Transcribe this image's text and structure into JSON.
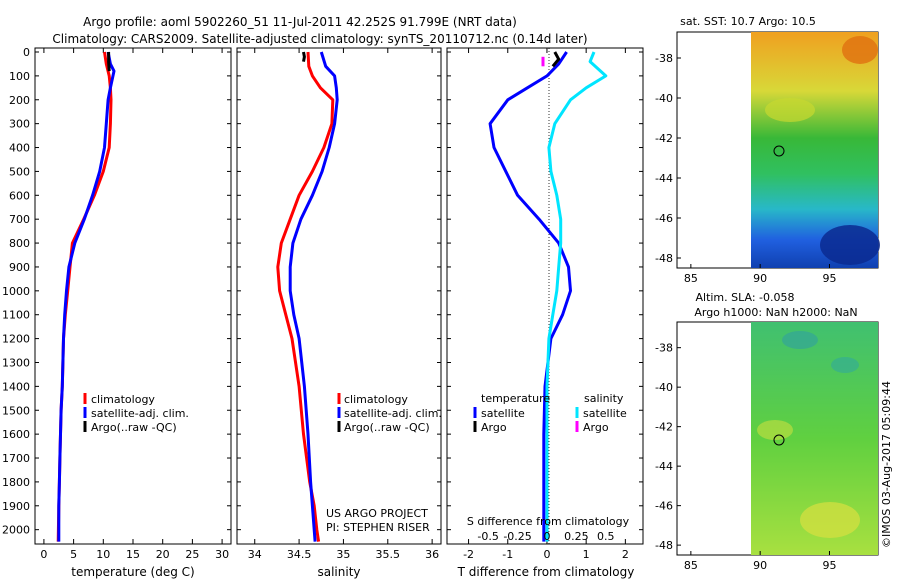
{
  "header": {
    "title_line1": "Argo profile: aoml 5902260_51 11-Jul-2011 42.252S 91.799E (NRT data)",
    "title_line2": "Climatology: CARS2009. Satellite-adjusted climatology: synTS_20110712.nc (0.14d later)"
  },
  "colors": {
    "climatology": "#ff0000",
    "satellite": "#0000ff",
    "argo": "#000000",
    "sat_salinity": "#00e5ff",
    "argo_salinity": "#ff00ff"
  },
  "depth_ticks": [
    0,
    100,
    200,
    300,
    400,
    500,
    600,
    700,
    800,
    900,
    1000,
    1100,
    1200,
    1300,
    1400,
    1500,
    1600,
    1700,
    1800,
    1900,
    2000
  ],
  "chart_data": [
    {
      "type": "line",
      "id": "temperature",
      "xlabel": "temperature (deg C)",
      "ylabel": "depth",
      "xlim": [
        -1.5,
        31.5
      ],
      "ylim": [
        0,
        2060
      ],
      "xticks": [
        0,
        5,
        10,
        15,
        20,
        25,
        30
      ],
      "series": [
        {
          "name": "climatology",
          "color": "#ff0000",
          "x": [
            10.2,
            10.5,
            11.0,
            11.2,
            11.3,
            11.2,
            11.0,
            10.0,
            8.5,
            6.7,
            4.8,
            4.4,
            4.0,
            3.6,
            3.3,
            3.1,
            2.9,
            2.8,
            2.7,
            2.6,
            2.5,
            2.4
          ],
          "y": [
            0,
            50,
            100,
            150,
            200,
            300,
            400,
            500,
            600,
            700,
            800,
            900,
            1000,
            1100,
            1200,
            1400,
            1500,
            1600,
            1700,
            1800,
            1900,
            2050
          ]
        },
        {
          "name": "satellite-adj. clim.",
          "color": "#0000ff",
          "x": [
            10.8,
            11.2,
            11.8,
            11.2,
            10.8,
            10.5,
            10.2,
            9.4,
            8.2,
            6.8,
            5.2,
            4.2,
            3.8,
            3.5,
            3.3,
            3.1,
            2.9,
            2.8,
            2.7,
            2.6,
            2.5,
            2.5
          ],
          "y": [
            0,
            50,
            80,
            150,
            200,
            300,
            400,
            500,
            600,
            700,
            800,
            900,
            1000,
            1100,
            1200,
            1400,
            1500,
            1600,
            1700,
            1800,
            1900,
            2050
          ]
        },
        {
          "name": "Argo(..raw -QC)",
          "color": "#000000",
          "x": [
            10.9,
            10.9,
            11.0
          ],
          "y": [
            0,
            40,
            80
          ]
        }
      ],
      "legend": {
        "position": "lower-center",
        "entries": [
          "climatology",
          "satellite-adj. clim.",
          "Argo(..raw -QC)"
        ]
      }
    },
    {
      "type": "line",
      "id": "salinity",
      "xlabel": "salinity",
      "xlim": [
        33.8,
        36.1
      ],
      "ylim": [
        0,
        2060
      ],
      "xticks": [
        34,
        34.5,
        35,
        35.5,
        36
      ],
      "tick_labels": [
        "34",
        "34.5",
        "35",
        "35.5",
        "36"
      ],
      "series": [
        {
          "name": "climatology",
          "color": "#ff0000",
          "x": [
            34.6,
            34.61,
            34.65,
            34.74,
            34.88,
            34.87,
            34.78,
            34.65,
            34.5,
            34.4,
            34.3,
            34.26,
            34.28,
            34.35,
            34.42,
            34.5,
            34.55,
            34.62,
            34.67,
            34.7,
            34.72
          ],
          "y": [
            0,
            60,
            100,
            150,
            200,
            300,
            400,
            500,
            600,
            700,
            800,
            900,
            1000,
            1100,
            1200,
            1400,
            1600,
            1800,
            1900,
            2000,
            2050
          ]
        },
        {
          "name": "satellite-adj. clim.",
          "color": "#0000ff",
          "x": [
            34.75,
            34.8,
            34.9,
            34.92,
            34.93,
            34.9,
            34.84,
            34.76,
            34.65,
            34.52,
            34.43,
            34.4,
            34.4,
            34.44,
            34.5,
            34.56,
            34.6,
            34.63,
            34.65,
            34.67,
            34.68
          ],
          "y": [
            0,
            60,
            100,
            150,
            200,
            300,
            400,
            500,
            600,
            700,
            800,
            900,
            1000,
            1100,
            1200,
            1400,
            1600,
            1800,
            1900,
            2000,
            2050
          ]
        },
        {
          "name": "Argo(..raw -QC)",
          "color": "#000000",
          "x": [
            34.55,
            34.56,
            34.55
          ],
          "y": [
            0,
            20,
            40
          ]
        }
      ],
      "legend": {
        "position": "lower-right",
        "entries": [
          "climatology",
          "satellite-adj. clim.",
          "Argo(..raw -QC)"
        ]
      },
      "annotation": [
        "US ARGO PROJECT",
        "PI: STEPHEN RISER"
      ]
    },
    {
      "type": "line",
      "id": "difference",
      "xlabel": "T difference from climatology",
      "top_label": "S difference from climatology",
      "xlim": [
        -2.55,
        2.45
      ],
      "ylim": [
        0,
        2060
      ],
      "xticks": [
        -2,
        -1,
        0,
        1,
        2
      ],
      "tick_labels": [
        "-2",
        "-1",
        "0",
        "1",
        "2"
      ],
      "s_ticks": {
        "positions": [
          -1.5,
          -0.75,
          0,
          0.75,
          1.5
        ],
        "labels": [
          "-0.5",
          "-0.25",
          "0",
          "0.25",
          "0.5"
        ]
      },
      "series": [
        {
          "name": "T satellite",
          "color": "#0000ff",
          "x": [
            0.5,
            0.3,
            0.0,
            -0.5,
            -1.0,
            -1.45,
            -1.35,
            -1.05,
            -0.75,
            -0.2,
            0.3,
            0.55,
            0.6,
            0.4,
            0.1,
            -0.05,
            -0.08,
            -0.08,
            -0.08,
            -0.08,
            -0.08
          ],
          "y": [
            0,
            50,
            100,
            150,
            200,
            300,
            400,
            500,
            600,
            700,
            800,
            900,
            1000,
            1100,
            1200,
            1400,
            1600,
            1800,
            1900,
            2000,
            2050
          ]
        },
        {
          "name": "S satellite",
          "color": "#00e5ff",
          "x": [
            1.2,
            1.1,
            1.5,
            1.0,
            0.6,
            0.2,
            0.05,
            0.1,
            0.25,
            0.35,
            0.35,
            0.3,
            0.25,
            0.15,
            0.05,
            0.0,
            0.0,
            0.0,
            0.0,
            0.0,
            0.0
          ],
          "y": [
            0,
            40,
            100,
            150,
            200,
            300,
            400,
            500,
            600,
            700,
            800,
            900,
            1000,
            1100,
            1200,
            1400,
            1600,
            1800,
            1900,
            2000,
            2050
          ]
        },
        {
          "name": "T Argo",
          "color": "#000000",
          "x": [
            0.2,
            0.3,
            0.15
          ],
          "y": [
            0,
            30,
            60
          ]
        },
        {
          "name": "S Argo",
          "color": "#ff00ff",
          "x": [
            -0.1,
            -0.1
          ],
          "y": [
            20,
            60
          ]
        }
      ],
      "legend": {
        "temperature": "temperature",
        "salinity": "salinity",
        "entries": [
          "satellite",
          "Argo"
        ]
      }
    }
  ],
  "maps": [
    {
      "id": "sst",
      "title_lines": [
        "sat. SST: 10.7 Argo: 10.5"
      ],
      "xticks": [
        "85",
        "90",
        "95"
      ],
      "yticks": [
        "-38",
        "-40",
        "-42",
        "-44",
        "-46",
        "-48"
      ]
    },
    {
      "id": "sla",
      "title_lines": [
        "Altim. SLA: -0.058",
        "Argo h1000: NaN h2000: NaN"
      ],
      "xticks": [
        "85",
        "90",
        "95"
      ],
      "yticks": [
        "-38",
        "-40",
        "-42",
        "-44",
        "-46",
        "-48"
      ]
    }
  ],
  "footer": {
    "credit": "©IMOS 03-Aug-2017 05:09:44"
  }
}
